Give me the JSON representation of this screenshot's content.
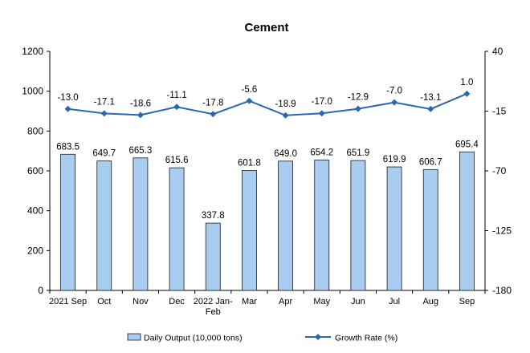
{
  "chart_data": {
    "type": "bar+line",
    "title": "Cement",
    "categories": [
      [
        "2021 Sep"
      ],
      [
        "Oct"
      ],
      [
        "Nov"
      ],
      [
        "Dec"
      ],
      [
        "2022 Jan-",
        "Feb"
      ],
      [
        "Mar"
      ],
      [
        "Apr"
      ],
      [
        "May"
      ],
      [
        "Jun"
      ],
      [
        "Jul"
      ],
      [
        "Aug"
      ],
      [
        "Sep"
      ]
    ],
    "series": [
      {
        "name": "Daily Output (10,000 tons)",
        "kind": "bar",
        "axis": "left",
        "values": [
          683.5,
          649.7,
          665.3,
          615.6,
          337.8,
          601.8,
          649.0,
          654.2,
          651.9,
          619.9,
          606.7,
          695.4
        ],
        "labels": [
          "683.5",
          "649.7",
          "665.3",
          "615.6",
          "337.8",
          "601.8",
          "649.0",
          "654.2",
          "651.9",
          "619.9",
          "606.7",
          "695.4"
        ]
      },
      {
        "name": "Growth Rate (%)",
        "kind": "line",
        "axis": "right",
        "values": [
          -13.0,
          -17.1,
          -18.6,
          -11.1,
          -17.8,
          -5.6,
          -18.9,
          -17.0,
          -12.9,
          -7.0,
          -13.1,
          1.0
        ],
        "labels": [
          "-13.0",
          "-17.1",
          "-18.6",
          "-11.1",
          "-17.8",
          "-5.6",
          "-18.9",
          "-17.0",
          "-12.9",
          "-7.0",
          "-13.1",
          "1.0"
        ]
      }
    ],
    "left_axis": {
      "ylim": [
        0,
        1200
      ],
      "ticks": [
        0,
        200,
        400,
        600,
        800,
        1000,
        1200
      ],
      "tick_labels": [
        "0",
        "200",
        "400",
        "600",
        "800",
        "1000",
        "1200"
      ]
    },
    "right_axis": {
      "ylim": [
        -180,
        40
      ],
      "ticks": [
        -180,
        -125,
        -70,
        -15,
        40
      ],
      "tick_labels": [
        "-180",
        "-125",
        "-70",
        "-15",
        "40"
      ]
    },
    "grid": false,
    "legend_position": "bottom",
    "colors": {
      "bar_fill": "#a9cdf0",
      "bar_stroke": "#1a1a1a",
      "line": "#2a67b1"
    }
  }
}
